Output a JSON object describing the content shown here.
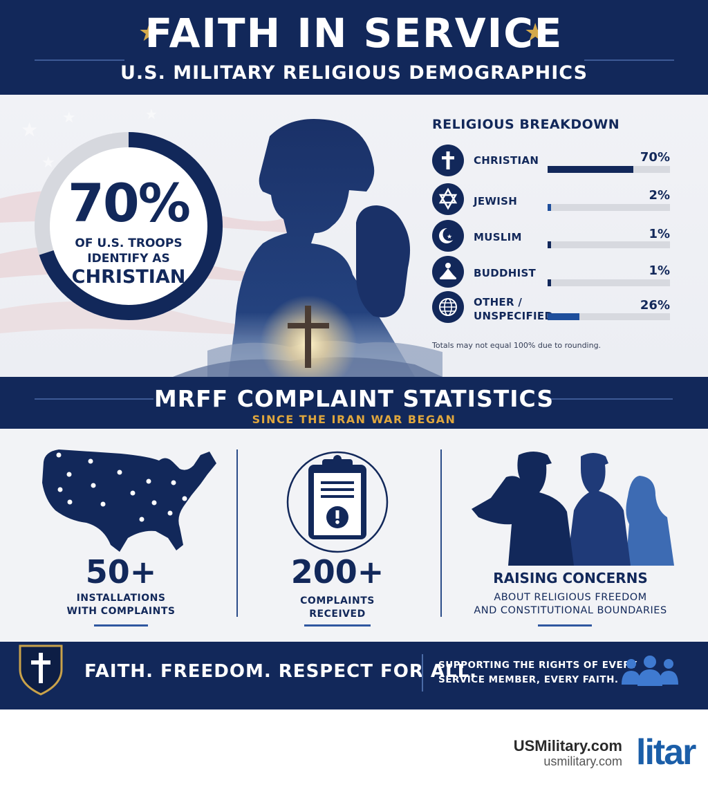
{
  "header": {
    "title": "FAITH IN SERVICE",
    "subtitle": "U.S. MILITARY RELIGIOUS DEMOGRAPHICS"
  },
  "hero": {
    "stat_value": "70%",
    "stat_line1": "OF U.S. TROOPS",
    "stat_line2": "IDENTIFY AS",
    "stat_line3": "CHRISTIAN",
    "ring_fraction": 0.7
  },
  "breakdown": {
    "title": "RELIGIOUS BREAKDOWN",
    "note": "Totals may not equal 100% due to rounding.",
    "items": [
      {
        "label": "CHRISTIAN",
        "label2": "",
        "pct_text": "70%",
        "value": 70,
        "icon": "cross-icon"
      },
      {
        "label": "JEWISH",
        "label2": "",
        "pct_text": "2%",
        "value": 2,
        "icon": "star-of-david-icon"
      },
      {
        "label": "MUSLIM",
        "label2": "",
        "pct_text": "1%",
        "value": 1,
        "icon": "crescent-icon"
      },
      {
        "label": "BUDDHIST",
        "label2": "",
        "pct_text": "1%",
        "value": 1,
        "icon": "meditating-figure-icon"
      },
      {
        "label": "OTHER /",
        "label2": "UNSPECIFIED",
        "pct_text": "26%",
        "value": 26,
        "icon": "globe-icon"
      }
    ]
  },
  "mrff": {
    "title": "MRFF COMPLAINT STATISTICS",
    "subtitle": "SINCE THE IRAN WAR BEGAN"
  },
  "stats": {
    "installations": {
      "value": "50+",
      "line1": "INSTALLATIONS",
      "line2": "WITH COMPLAINTS"
    },
    "complaints": {
      "value": "200+",
      "line1": "COMPLAINTS",
      "line2": "RECEIVED"
    },
    "concerns": {
      "title": "RAISING CONCERNS",
      "line1": "ABOUT RELIGIOUS FREEDOM",
      "line2": "AND CONSTITUTIONAL BOUNDARIES"
    }
  },
  "footer": {
    "tagline": "FAITH. FREEDOM. RESPECT FOR ALL.",
    "support_line1": "SUPPORTING THE RIGHTS OF EVERY",
    "support_line2": "SERVICE MEMBER, EVERY FAITH."
  },
  "branding": {
    "name": "USMilitary.com",
    "url": "usmilitary.com",
    "logo_text": "litar"
  },
  "colors": {
    "navy": "#12285a",
    "accent_gold": "#d4a94b",
    "bar_blue": "#1f4f9c",
    "track_grey": "#d7d9df"
  }
}
